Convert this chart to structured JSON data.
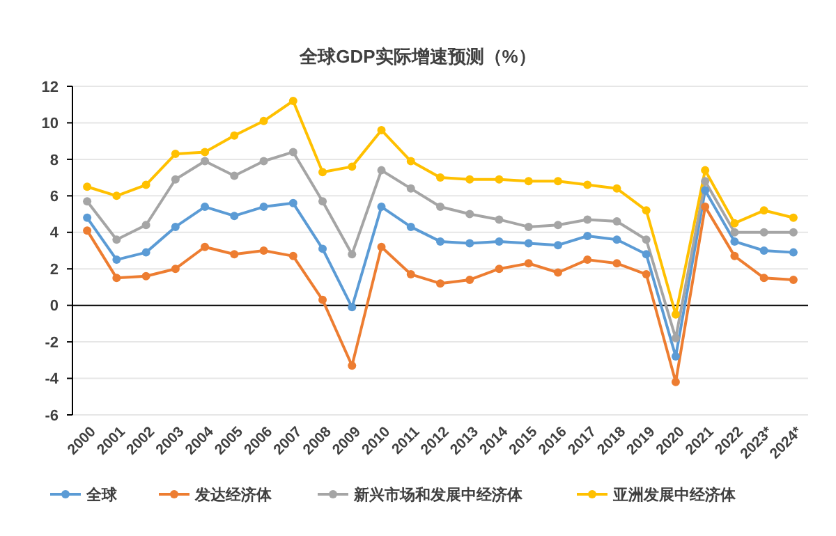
{
  "chart_data": {
    "type": "line",
    "title": "全球GDP实际增速预测（%）",
    "categories": [
      "2000",
      "2001",
      "2002",
      "2003",
      "2004",
      "2005",
      "2006",
      "2007",
      "2008",
      "2009",
      "2010",
      "2011",
      "2012",
      "2013",
      "2014",
      "2015",
      "2016",
      "2017",
      "2018",
      "2019",
      "2020",
      "2021",
      "2022",
      "2023*",
      "2024*"
    ],
    "series": [
      {
        "name": "全球",
        "color": "#5b9bd5",
        "values": [
          4.8,
          2.5,
          2.9,
          4.3,
          5.4,
          4.9,
          5.4,
          5.6,
          3.1,
          -0.1,
          5.4,
          4.3,
          3.5,
          3.4,
          3.5,
          3.4,
          3.3,
          3.8,
          3.6,
          2.8,
          -2.8,
          6.3,
          3.5,
          3.0,
          2.9
        ]
      },
      {
        "name": "发达经济体",
        "color": "#ed7d31",
        "values": [
          4.1,
          1.5,
          1.6,
          2.0,
          3.2,
          2.8,
          3.0,
          2.7,
          0.3,
          -3.3,
          3.2,
          1.7,
          1.2,
          1.4,
          2.0,
          2.3,
          1.8,
          2.5,
          2.3,
          1.7,
          -4.2,
          5.4,
          2.7,
          1.5,
          1.4
        ]
      },
      {
        "name": "新兴市场和发展中经济体",
        "color": "#a5a5a5",
        "values": [
          5.7,
          3.6,
          4.4,
          6.9,
          7.9,
          7.1,
          7.9,
          8.4,
          5.7,
          2.8,
          7.4,
          6.4,
          5.4,
          5.0,
          4.7,
          4.3,
          4.4,
          4.7,
          4.6,
          3.6,
          -1.8,
          6.8,
          4.0,
          4.0,
          4.0
        ]
      },
      {
        "name": "亚洲发展中经济体",
        "color": "#ffc000",
        "values": [
          6.5,
          6.0,
          6.6,
          8.3,
          8.4,
          9.3,
          10.1,
          11.2,
          7.3,
          7.6,
          9.6,
          7.9,
          7.0,
          6.9,
          6.9,
          6.8,
          6.8,
          6.6,
          6.4,
          5.2,
          -0.5,
          7.4,
          4.5,
          5.2,
          4.8
        ]
      }
    ],
    "ylim": [
      -6,
      12
    ],
    "yticks": [
      -6,
      -4,
      -2,
      0,
      2,
      4,
      6,
      8,
      10,
      12
    ],
    "grid": "y",
    "legend": "bottom",
    "marker": "circle",
    "line_style": "solid"
  }
}
